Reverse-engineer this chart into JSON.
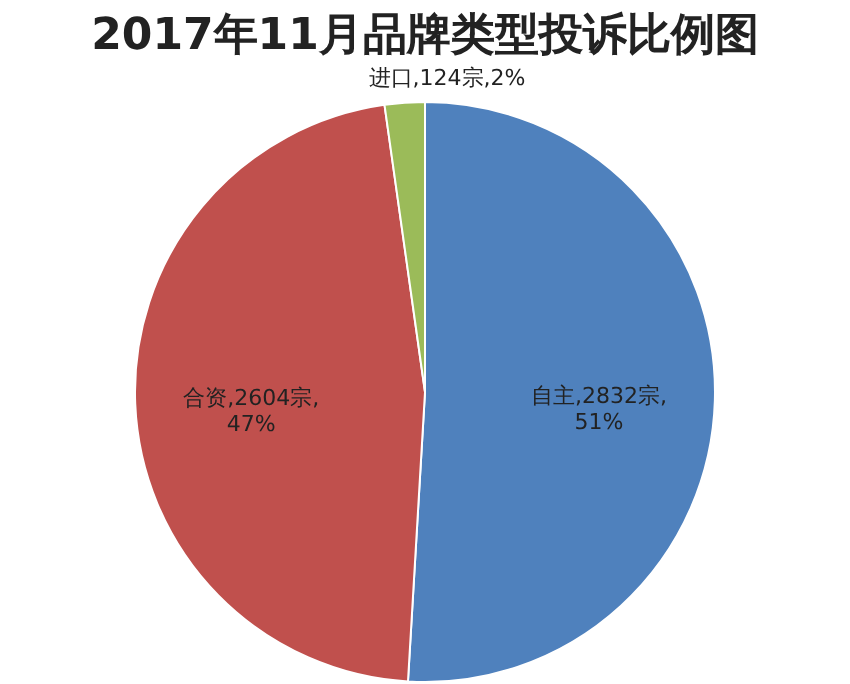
{
  "chart_data": {
    "type": "pie",
    "title": "2017年11月品牌类型投诉比例图",
    "categories": [
      "自主",
      "合资",
      "进口"
    ],
    "values": [
      2832,
      2604,
      124
    ],
    "colors": [
      "#4f81bd",
      "#c0504d",
      "#9bbb59"
    ],
    "value_labels": [
      "2832宗,\n51%",
      "2604宗,\n47%",
      "124宗,2%"
    ],
    "legend": false
  }
}
